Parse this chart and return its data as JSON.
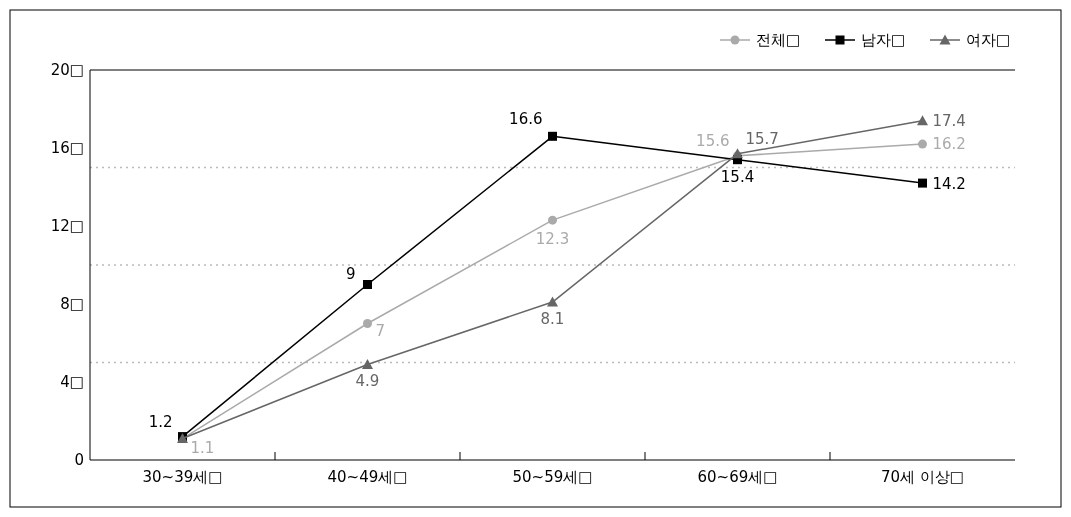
{
  "chart_data": {
    "type": "line",
    "categories": [
      "30~39세□",
      "40~49세□",
      "50~59세□",
      "60~69세□",
      "70세 이상□"
    ],
    "series": [
      {
        "name": "전체□",
        "color": "#aaaaaa",
        "marker": "circle",
        "values": [
          1.1,
          7,
          12.3,
          15.6,
          16.2
        ],
        "value_labels": [
          "1.1",
          "7",
          "12.3",
          "15.6",
          "16.2"
        ]
      },
      {
        "name": "남자□",
        "color": "#000000",
        "marker": "square",
        "values": [
          1.2,
          9,
          16.6,
          15.4,
          14.2
        ],
        "value_labels": [
          "1.2",
          "9",
          "16.6",
          "15.4",
          "14.2"
        ]
      },
      {
        "name": "여자□",
        "color": "#666666",
        "marker": "triangle",
        "values": [
          1.1,
          4.9,
          8.1,
          15.7,
          17.4
        ],
        "value_labels": [
          null,
          "4.9",
          "8.1",
          "15.7",
          "17.4"
        ]
      }
    ],
    "ylim": [
      0,
      20
    ],
    "yticks": [
      0,
      {
        "value": 4,
        "label": "4□"
      },
      {
        "value": 8,
        "label": "8□"
      },
      {
        "value": 12,
        "label": "12□"
      },
      {
        "value": 16,
        "label": "16□"
      },
      {
        "value": 20,
        "label": "20□"
      }
    ],
    "ref_lines": [
      {
        "axis": "y",
        "value": 5,
        "color": "#bbbbbb",
        "line_style": "dotted"
      },
      {
        "axis": "y",
        "value": 10,
        "color": "#bbbbbb",
        "line_style": "dotted"
      },
      {
        "axis": "y",
        "value": 15,
        "color": "#bbbbbb",
        "line_style": "dotted"
      }
    ],
    "grid": false,
    "legend": "top right",
    "line_style": "solid"
  }
}
